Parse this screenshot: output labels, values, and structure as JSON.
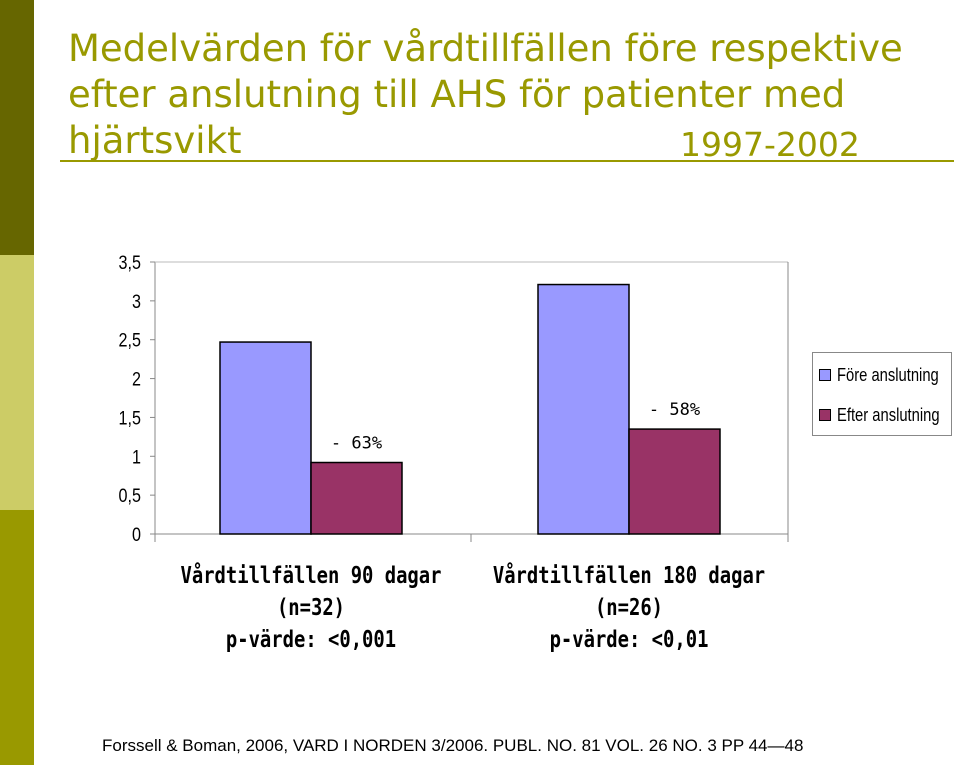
{
  "title_lines": [
    "Medelvärden för vårdtillfällen före respektive",
    "efter anslutning till AHS för patienter med",
    "hjärtsvikt"
  ],
  "years": "1997-2002",
  "footer": "Forssell & Boman, 2006, VARD I NORDEN 3/2006. PUBL. NO. 81 VOL. 26 NO. 3 PP 44—48",
  "colors": {
    "accent": "#999900",
    "sidebar_dark": "#666600",
    "sidebar_light": "#cccc66",
    "before": "#9999ff",
    "after": "#993366"
  },
  "chart_data": {
    "type": "bar",
    "categories": [
      "Vårdtillfällen 90 dagar",
      "Vårdtillfällen 180 dagar"
    ],
    "category_sublabels": [
      [
        "(n=32)",
        "p-värde: <0,001"
      ],
      [
        "(n=26)",
        "p-värde: <0,01"
      ]
    ],
    "series": [
      {
        "name": "Före anslutning",
        "values": [
          2.47,
          3.21
        ]
      },
      {
        "name": "Efter anslutning",
        "values": [
          0.92,
          1.35
        ]
      }
    ],
    "annotations": [
      "- 63%",
      "- 58%"
    ],
    "ylim": [
      0,
      3.5
    ],
    "yticks": [
      "0",
      "0,5",
      "1",
      "1,5",
      "2",
      "2,5",
      "3",
      "3,5"
    ],
    "grid": false,
    "legend": "right"
  }
}
